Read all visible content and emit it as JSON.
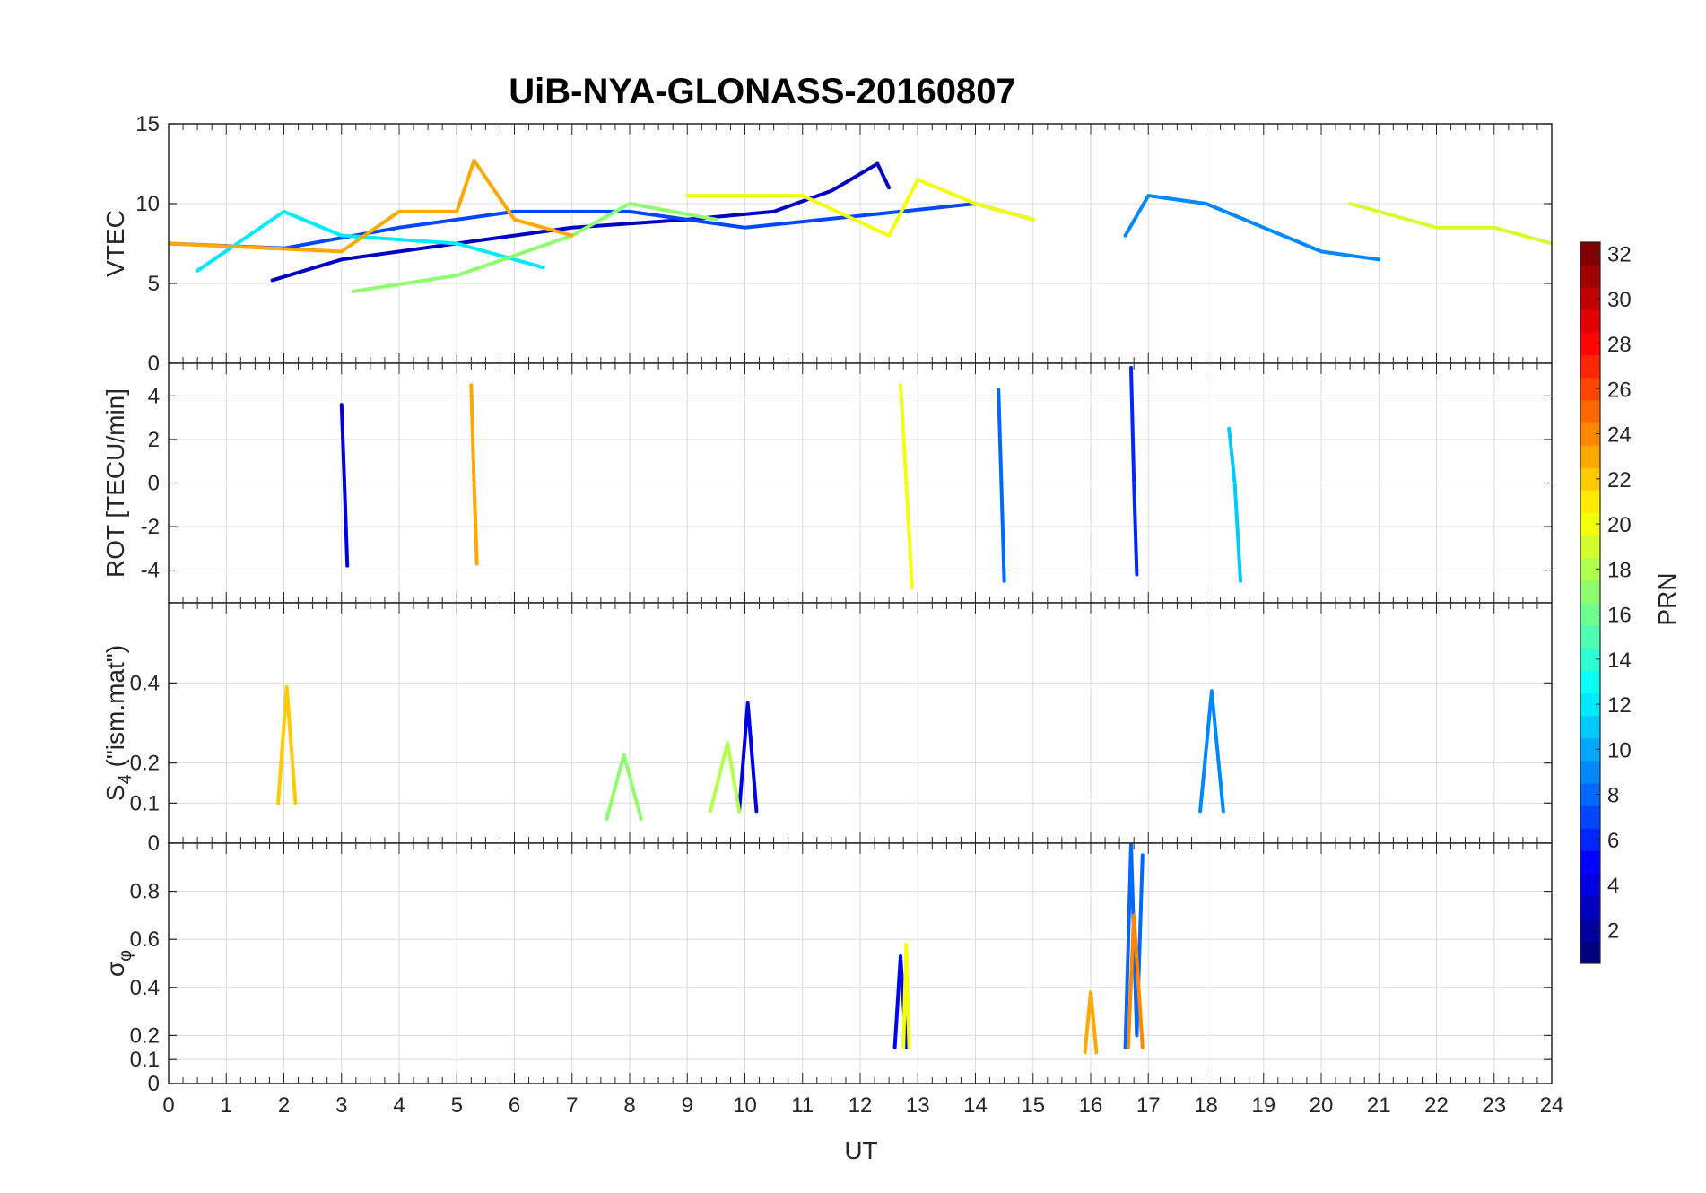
{
  "figure": {
    "title": "UiB-NYA-GLONASS-20160807",
    "xlabel": "UT"
  },
  "x_ticks": [
    "0",
    "1",
    "2",
    "3",
    "4",
    "5",
    "6",
    "7",
    "8",
    "9",
    "10",
    "11",
    "12",
    "13",
    "14",
    "15",
    "16",
    "17",
    "18",
    "19",
    "20",
    "21",
    "22",
    "23",
    "24"
  ],
  "colorbar": {
    "label": "PRN",
    "range": [
      1,
      32
    ],
    "colormap": "jet",
    "ticks": [
      "2",
      "4",
      "6",
      "8",
      "10",
      "12",
      "14",
      "16",
      "18",
      "20",
      "22",
      "24",
      "26",
      "28",
      "30",
      "32"
    ]
  },
  "chart_data": [
    {
      "type": "line",
      "panel": "vtec",
      "ylabel": "VTEC",
      "xlim": [
        0,
        24
      ],
      "ylim": [
        0,
        15
      ],
      "ytick_values": [
        0,
        5,
        10,
        15
      ],
      "ytick_labels": [
        "0",
        "5",
        "10",
        "15"
      ],
      "series_count": "many satellites (one line per PRN), colored by PRN",
      "series": [
        {
          "prn": 3,
          "x": [
            1.8,
            3,
            5,
            7,
            9,
            10.5,
            11.5,
            12.3,
            12.5
          ],
          "y": [
            5.2,
            6.5,
            7.5,
            8.5,
            9,
            9.5,
            10.8,
            12.5,
            11
          ]
        },
        {
          "prn": 7,
          "x": [
            0,
            2,
            4,
            6,
            8,
            10,
            12.7,
            14,
            15
          ],
          "y": [
            7.5,
            7.2,
            8.5,
            9.5,
            9.5,
            8.5,
            9.5,
            10,
            9
          ]
        },
        {
          "prn": 9,
          "x": [
            16.6,
            17,
            18,
            19,
            20,
            21
          ],
          "y": [
            8,
            10.5,
            10,
            8.5,
            7,
            6.5
          ]
        },
        {
          "prn": 12,
          "x": [
            0.5,
            2,
            3,
            5,
            6.5
          ],
          "y": [
            5.8,
            9.5,
            8,
            7.5,
            6
          ]
        },
        {
          "prn": 17,
          "x": [
            3.2,
            5,
            7,
            8,
            9.5
          ],
          "y": [
            4.5,
            5.5,
            8,
            10,
            9
          ]
        },
        {
          "prn": 20,
          "x": [
            9,
            11,
            12.5,
            13,
            14,
            15
          ],
          "y": [
            10.5,
            10.5,
            8,
            11.5,
            10,
            9
          ]
        },
        {
          "prn": 23,
          "x": [
            0,
            3,
            4,
            5,
            5.3,
            6,
            7
          ],
          "y": [
            7.5,
            7,
            9.5,
            9.5,
            12.7,
            9,
            8
          ]
        },
        {
          "prn": 19,
          "x": [
            20.5,
            22,
            23,
            24
          ],
          "y": [
            10,
            8.5,
            8.5,
            7.5
          ]
        }
      ]
    },
    {
      "type": "line",
      "panel": "rot",
      "ylabel": "ROT [TECU/min]",
      "xlim": [
        0,
        24
      ],
      "ylim": [
        -5.5,
        5.5
      ],
      "ytick_values": [
        -4,
        -2,
        0,
        2,
        4
      ],
      "ytick_labels": [
        "-4",
        "-2",
        "0",
        "2",
        "4"
      ],
      "series": [
        {
          "prn": 4,
          "x": [
            3.0,
            3.05,
            3.1
          ],
          "y": [
            3.6,
            0,
            -3.8
          ]
        },
        {
          "prn": 23,
          "x": [
            5.25,
            5.3,
            5.35
          ],
          "y": [
            4.5,
            0,
            -3.7
          ]
        },
        {
          "prn": 20,
          "x": [
            12.7,
            12.8,
            12.9
          ],
          "y": [
            4.5,
            0,
            -4.8
          ]
        },
        {
          "prn": 8,
          "x": [
            14.4,
            14.45,
            14.5
          ],
          "y": [
            4.3,
            0,
            -4.5
          ]
        },
        {
          "prn": 6,
          "x": [
            16.7,
            16.75,
            16.8
          ],
          "y": [
            5.3,
            0,
            -4.2
          ]
        },
        {
          "prn": 11,
          "x": [
            18.4,
            18.5,
            18.6
          ],
          "y": [
            2.5,
            0,
            -4.5
          ]
        }
      ]
    },
    {
      "type": "line",
      "panel": "s4",
      "ylabel": "S_4 (\"ism.mat\")",
      "ylabel_main": "S",
      "ylabel_sub": "4",
      "ylabel_rest": " (\"ism.mat\")",
      "xlim": [
        0,
        24
      ],
      "ylim": [
        0,
        0.6
      ],
      "ytick_values": [
        0,
        0.1,
        0.2,
        0.4
      ],
      "ytick_labels": [
        "0",
        "0.1",
        "0.2",
        "0.4"
      ],
      "series": [
        {
          "prn": 22,
          "x": [
            1.9,
            2.05,
            2.2
          ],
          "y": [
            0.1,
            0.39,
            0.1
          ]
        },
        {
          "prn": 4,
          "x": [
            9.9,
            10.05,
            10.2
          ],
          "y": [
            0.08,
            0.35,
            0.08
          ]
        },
        {
          "prn": 9,
          "x": [
            17.9,
            18.1,
            18.3
          ],
          "y": [
            0.08,
            0.38,
            0.08
          ]
        },
        {
          "prn": 17,
          "x": [
            7.6,
            7.9,
            8.2
          ],
          "y": [
            0.06,
            0.22,
            0.06
          ]
        },
        {
          "prn": 18,
          "x": [
            9.4,
            9.7,
            9.9
          ],
          "y": [
            0.08,
            0.25,
            0.08
          ]
        }
      ]
    },
    {
      "type": "line",
      "panel": "sigma_phi",
      "ylabel": "σ_φ",
      "ylabel_main": "σ",
      "ylabel_sub": "φ",
      "xlim": [
        0,
        24
      ],
      "ylim": [
        0,
        1
      ],
      "ytick_values": [
        0,
        0.1,
        0.2,
        0.4,
        0.6,
        0.8
      ],
      "ytick_labels": [
        "0",
        "0.1",
        "0.2",
        "0.4",
        "0.6",
        "0.8"
      ],
      "series": [
        {
          "prn": 5,
          "x": [
            12.6,
            12.7,
            12.8
          ],
          "y": [
            0.15,
            0.53,
            0.15
          ]
        },
        {
          "prn": 20,
          "x": [
            12.75,
            12.8,
            12.85
          ],
          "y": [
            0.15,
            0.58,
            0.15
          ]
        },
        {
          "prn": 8,
          "x": [
            16.6,
            16.7,
            16.8,
            16.9
          ],
          "y": [
            0.15,
            1.0,
            0.2,
            0.95
          ]
        },
        {
          "prn": 24,
          "x": [
            16.65,
            16.75,
            16.9
          ],
          "y": [
            0.15,
            0.7,
            0.15
          ]
        },
        {
          "prn": 23,
          "x": [
            15.9,
            16.0,
            16.1
          ],
          "y": [
            0.13,
            0.38,
            0.13
          ]
        }
      ]
    }
  ]
}
